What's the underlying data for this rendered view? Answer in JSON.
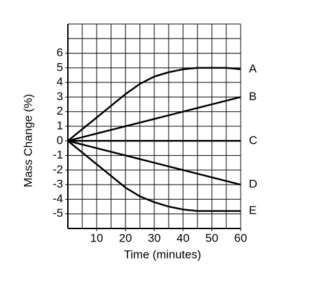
{
  "chart_data": {
    "type": "line",
    "x": [
      0,
      5,
      10,
      15,
      20,
      25,
      30,
      35,
      40,
      45,
      50,
      55,
      60
    ],
    "series": [
      {
        "name": "A",
        "color": "#000000",
        "values": [
          0,
          0.8,
          1.6,
          2.4,
          3.2,
          3.9,
          4.4,
          4.7,
          4.9,
          5.0,
          5.0,
          5.0,
          4.9
        ]
      },
      {
        "name": "B",
        "color": "#000000",
        "values": [
          0,
          0.25,
          0.5,
          0.75,
          1.0,
          1.25,
          1.5,
          1.75,
          2.0,
          2.25,
          2.5,
          2.75,
          3.0
        ]
      },
      {
        "name": "C",
        "color": "#000000",
        "values": [
          0,
          0,
          0,
          0,
          0,
          0,
          0,
          0,
          0,
          0,
          0,
          0,
          0
        ]
      },
      {
        "name": "D",
        "color": "#000000",
        "values": [
          0,
          -0.25,
          -0.5,
          -0.75,
          -1.0,
          -1.25,
          -1.5,
          -1.75,
          -2.0,
          -2.25,
          -2.5,
          -2.75,
          -3.0
        ]
      },
      {
        "name": "E",
        "color": "#000000",
        "values": [
          0,
          -0.8,
          -1.6,
          -2.4,
          -3.2,
          -3.8,
          -4.2,
          -4.5,
          -4.7,
          -4.8,
          -4.8,
          -4.8,
          -4.8
        ]
      }
    ],
    "x_label": "Time (minutes)",
    "y_label": "Mass Change (%)",
    "xlim": [
      0,
      60
    ],
    "xticks": [
      10,
      20,
      30,
      40,
      50,
      60
    ],
    "ylim": [
      -6,
      8
    ],
    "yticks": [
      -5,
      -4,
      -3,
      -2,
      -1,
      0,
      1,
      2,
      3,
      4,
      5,
      6
    ],
    "x_grid": [
      0,
      5,
      10,
      15,
      20,
      25,
      30,
      35,
      40,
      45,
      50,
      55,
      60
    ],
    "y_grid": [
      -6,
      -5,
      -4,
      -3,
      -2,
      -1,
      0,
      1,
      2,
      3,
      4,
      5,
      6,
      7,
      8
    ],
    "grid": true
  }
}
